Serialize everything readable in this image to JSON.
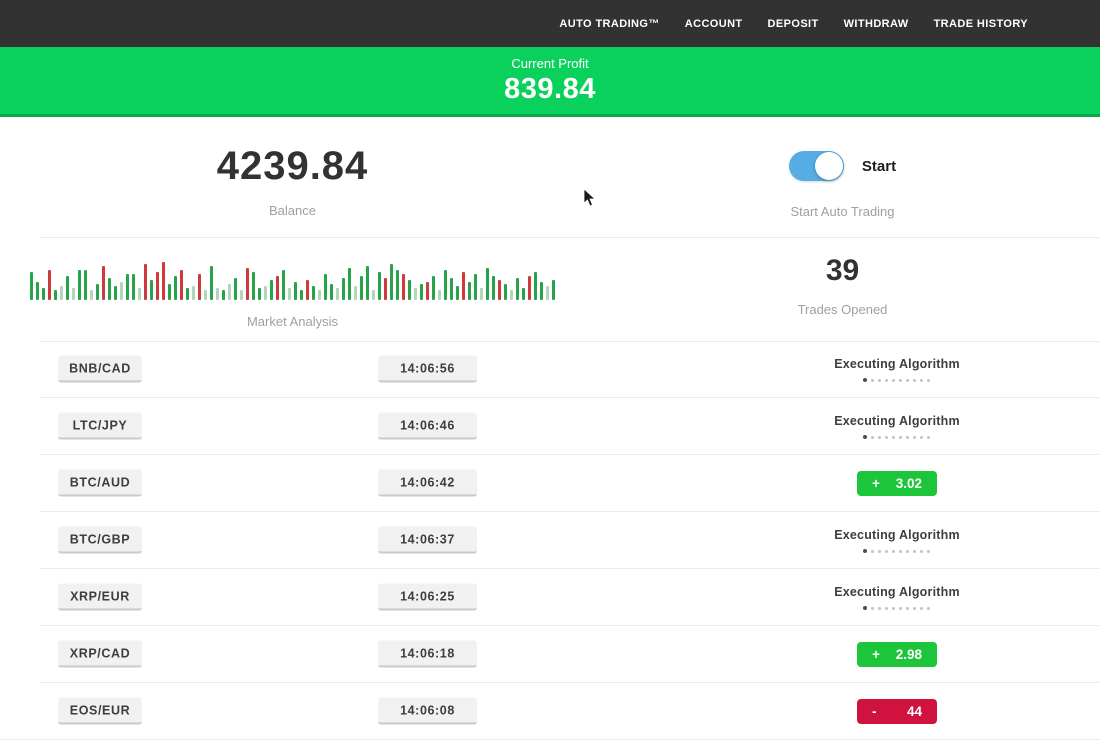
{
  "nav": {
    "items": [
      {
        "label": "AUTO TRADING™"
      },
      {
        "label": "ACCOUNT"
      },
      {
        "label": "DEPOSIT"
      },
      {
        "label": "WITHDRAW"
      },
      {
        "label": "TRADE HISTORY"
      }
    ]
  },
  "profit_banner": {
    "label": "Current Profit",
    "value": "839.84"
  },
  "stats": {
    "balance": {
      "value": "4239.84",
      "label": "Balance"
    },
    "auto_trading": {
      "toggle_state": "on",
      "toggle_label": "Start",
      "label": "Start Auto Trading"
    },
    "market_analysis": {
      "label": "Market Analysis"
    },
    "trades_opened": {
      "value": "39",
      "label": "Trades Opened"
    }
  },
  "trades": [
    {
      "pair": "BNB/CAD",
      "time": "14:06:56",
      "status": "executing",
      "status_label": "Executing Algorithm"
    },
    {
      "pair": "LTC/JPY",
      "time": "14:06:46",
      "status": "executing",
      "status_label": "Executing Algorithm"
    },
    {
      "pair": "BTC/AUD",
      "time": "14:06:42",
      "status": "profit",
      "sign": "+",
      "value": "3.02"
    },
    {
      "pair": "BTC/GBP",
      "time": "14:06:37",
      "status": "executing",
      "status_label": "Executing Algorithm"
    },
    {
      "pair": "XRP/EUR",
      "time": "14:06:25",
      "status": "executing",
      "status_label": "Executing Algorithm"
    },
    {
      "pair": "XRP/CAD",
      "time": "14:06:18",
      "status": "profit",
      "sign": "+",
      "value": "2.98"
    },
    {
      "pair": "EOS/EUR",
      "time": "14:06:08",
      "status": "loss",
      "sign": "-",
      "value": "44"
    }
  ],
  "colors": {
    "nav_bg": "#323232",
    "banner_green": "#0ad15c",
    "toggle_blue": "#55ade3",
    "profit_green": "#1dc53a",
    "loss_red": "#d0123e"
  },
  "chart_data": {
    "type": "bar",
    "title": "Market Analysis",
    "note": "decorative red/green market pulse bars, no axes",
    "bars": [
      [
        "g",
        28
      ],
      [
        "g",
        18
      ],
      [
        "g",
        12
      ],
      [
        "r",
        30
      ],
      [
        "g",
        10
      ],
      [
        "G",
        14
      ],
      [
        "g",
        24
      ],
      [
        "G",
        12
      ],
      [
        "g",
        30
      ],
      [
        "g",
        30
      ],
      [
        "G",
        10
      ],
      [
        "g",
        16
      ],
      [
        "r",
        34
      ],
      [
        "g",
        22
      ],
      [
        "g",
        14
      ],
      [
        "G",
        18
      ],
      [
        "g",
        26
      ],
      [
        "g",
        26
      ],
      [
        "G",
        12
      ],
      [
        "r",
        36
      ],
      [
        "g",
        20
      ],
      [
        "r",
        28
      ],
      [
        "r",
        38
      ],
      [
        "g",
        16
      ],
      [
        "g",
        24
      ],
      [
        "r",
        30
      ],
      [
        "g",
        12
      ],
      [
        "G",
        14
      ],
      [
        "r",
        26
      ],
      [
        "G",
        10
      ],
      [
        "g",
        34
      ],
      [
        "G",
        12
      ],
      [
        "g",
        10
      ],
      [
        "G",
        16
      ],
      [
        "g",
        22
      ],
      [
        "G",
        10
      ],
      [
        "r",
        32
      ],
      [
        "g",
        28
      ],
      [
        "g",
        12
      ],
      [
        "G",
        14
      ],
      [
        "g",
        20
      ],
      [
        "r",
        24
      ],
      [
        "g",
        30
      ],
      [
        "G",
        12
      ],
      [
        "g",
        18
      ],
      [
        "g",
        10
      ],
      [
        "r",
        20
      ],
      [
        "g",
        14
      ],
      [
        "G",
        10
      ],
      [
        "g",
        26
      ],
      [
        "g",
        16
      ],
      [
        "G",
        12
      ],
      [
        "g",
        22
      ],
      [
        "g",
        32
      ],
      [
        "G",
        14
      ],
      [
        "g",
        24
      ],
      [
        "g",
        34
      ],
      [
        "G",
        10
      ],
      [
        "g",
        28
      ],
      [
        "r",
        22
      ],
      [
        "g",
        36
      ],
      [
        "g",
        30
      ],
      [
        "r",
        26
      ],
      [
        "g",
        20
      ],
      [
        "G",
        12
      ],
      [
        "g",
        16
      ],
      [
        "r",
        18
      ],
      [
        "g",
        24
      ],
      [
        "G",
        10
      ],
      [
        "g",
        30
      ],
      [
        "g",
        22
      ],
      [
        "g",
        14
      ],
      [
        "r",
        28
      ],
      [
        "g",
        18
      ],
      [
        "g",
        26
      ],
      [
        "G",
        12
      ],
      [
        "g",
        32
      ],
      [
        "g",
        24
      ],
      [
        "r",
        20
      ],
      [
        "g",
        16
      ],
      [
        "G",
        10
      ],
      [
        "g",
        22
      ],
      [
        "g",
        12
      ],
      [
        "r",
        24
      ],
      [
        "g",
        28
      ],
      [
        "g",
        18
      ],
      [
        "G",
        14
      ],
      [
        "g",
        20
      ]
    ]
  }
}
